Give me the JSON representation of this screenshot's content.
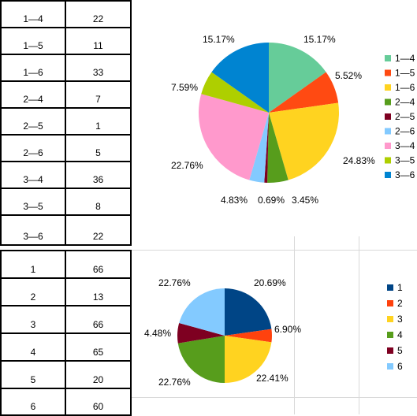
{
  "table_top": {
    "rows": [
      {
        "pair": "1—4",
        "count": "22"
      },
      {
        "pair": "1—5",
        "count": "11"
      },
      {
        "pair": "1—6",
        "count": "33"
      },
      {
        "pair": "2—4",
        "count": "7"
      },
      {
        "pair": "2—5",
        "count": "1"
      },
      {
        "pair": "2—6",
        "count": "5"
      },
      {
        "pair": "3—4",
        "count": "36"
      },
      {
        "pair": "3—5",
        "count": "8"
      },
      {
        "pair": "3—6",
        "count": "22"
      }
    ]
  },
  "table_bottom": {
    "rows": [
      {
        "pair": "1",
        "count": "66"
      },
      {
        "pair": "2",
        "count": "13"
      },
      {
        "pair": "3",
        "count": "66"
      },
      {
        "pair": "4",
        "count": "65"
      },
      {
        "pair": "5",
        "count": "20"
      },
      {
        "pair": "6",
        "count": "60"
      }
    ]
  },
  "chart_data": [
    {
      "type": "pie",
      "categories": [
        "1—4",
        "1—5",
        "1—6",
        "2—4",
        "2—5",
        "2—6",
        "3—4",
        "3—5",
        "3—6"
      ],
      "values": [
        22,
        11,
        33,
        7,
        1,
        5,
        36,
        8,
        22
      ],
      "data_labels": [
        "15.17%",
        "7.59%",
        "22.76%",
        "4.83%",
        "0.69%",
        "3.45%",
        "24.83%",
        "5.52%",
        "15.17%"
      ],
      "colors": [
        "#66cc99",
        "#ff4a12",
        "#ffd320",
        "#579d1c",
        "#7e0021",
        "#83caff",
        "#ff99cc",
        "#aecf00",
        "#0084d1"
      ],
      "legend": "right"
    },
    {
      "type": "pie",
      "categories": [
        "1",
        "2",
        "3",
        "4",
        "5",
        "6"
      ],
      "values": [
        66,
        13,
        66,
        65,
        20,
        60
      ],
      "data_labels": [
        "22.76%",
        "4.48%",
        "22.76%",
        "22.41%",
        "6.90%",
        "20.69%"
      ],
      "colors": [
        "#004586",
        "#ff420e",
        "#ffd320",
        "#579d1c",
        "#7e0021",
        "#83caff"
      ],
      "legend": "right"
    }
  ]
}
